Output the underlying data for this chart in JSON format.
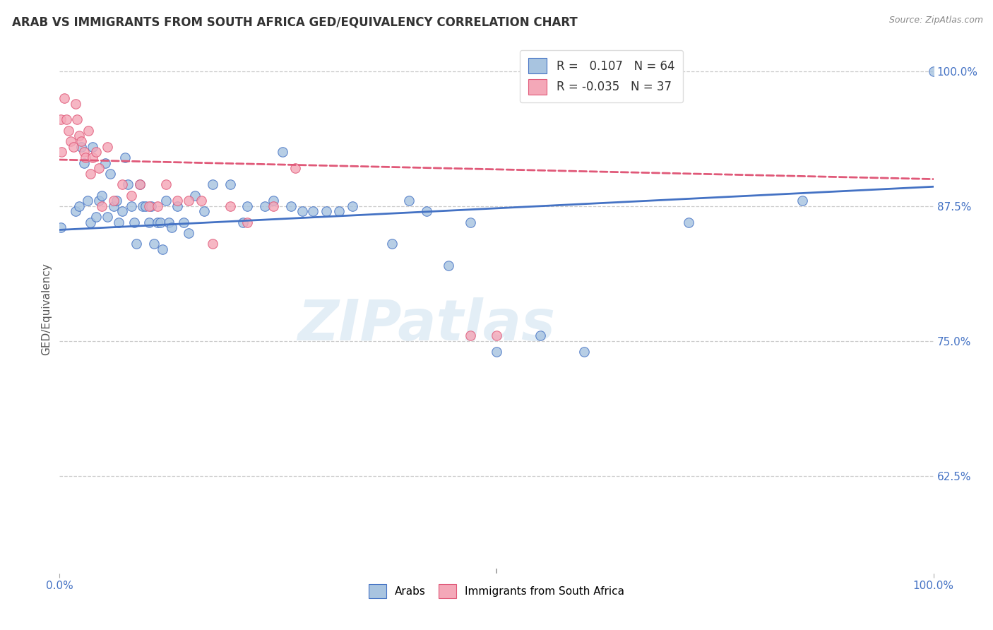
{
  "title": "ARAB VS IMMIGRANTS FROM SOUTH AFRICA GED/EQUIVALENCY CORRELATION CHART",
  "source": "Source: ZipAtlas.com",
  "ylabel": "GED/Equivalency",
  "xlim": [
    0.0,
    1.0
  ],
  "ylim": [
    0.535,
    1.025
  ],
  "legend_blue_r": "0.107",
  "legend_blue_n": "64",
  "legend_pink_r": "-0.035",
  "legend_pink_n": "37",
  "legend_label_blue": "Arabs",
  "legend_label_pink": "Immigrants from South Africa",
  "blue_color": "#a8c4e0",
  "pink_color": "#f4a8b8",
  "line_blue": "#4472c4",
  "line_pink": "#e05878",
  "title_color": "#333333",
  "axis_color": "#4472c4",
  "source_color": "#888888",
  "blue_x": [
    0.001,
    0.018,
    0.022,
    0.025,
    0.028,
    0.032,
    0.035,
    0.038,
    0.042,
    0.045,
    0.048,
    0.052,
    0.055,
    0.058,
    0.062,
    0.065,
    0.068,
    0.072,
    0.075,
    0.078,
    0.082,
    0.085,
    0.088,
    0.092,
    0.095,
    0.098,
    0.102,
    0.105,
    0.108,
    0.112,
    0.115,
    0.118,
    0.122,
    0.125,
    0.128,
    0.135,
    0.142,
    0.148,
    0.155,
    0.165,
    0.175,
    0.195,
    0.21,
    0.215,
    0.235,
    0.245,
    0.255,
    0.265,
    0.278,
    0.29,
    0.305,
    0.32,
    0.335,
    0.38,
    0.4,
    0.42,
    0.445,
    0.47,
    0.5,
    0.55,
    0.6,
    0.72,
    0.85,
    1.0
  ],
  "blue_y": [
    0.855,
    0.87,
    0.875,
    0.93,
    0.915,
    0.88,
    0.86,
    0.93,
    0.865,
    0.88,
    0.885,
    0.915,
    0.865,
    0.905,
    0.875,
    0.88,
    0.86,
    0.87,
    0.92,
    0.895,
    0.875,
    0.86,
    0.84,
    0.895,
    0.875,
    0.875,
    0.86,
    0.875,
    0.84,
    0.86,
    0.86,
    0.835,
    0.88,
    0.86,
    0.855,
    0.875,
    0.86,
    0.85,
    0.885,
    0.87,
    0.895,
    0.895,
    0.86,
    0.875,
    0.875,
    0.88,
    0.925,
    0.875,
    0.87,
    0.87,
    0.87,
    0.87,
    0.875,
    0.84,
    0.88,
    0.87,
    0.82,
    0.86,
    0.74,
    0.755,
    0.74,
    0.86,
    0.88,
    1.0
  ],
  "pink_x": [
    0.001,
    0.002,
    0.005,
    0.008,
    0.01,
    0.013,
    0.016,
    0.018,
    0.02,
    0.022,
    0.025,
    0.028,
    0.03,
    0.033,
    0.035,
    0.038,
    0.042,
    0.045,
    0.048,
    0.055,
    0.062,
    0.072,
    0.082,
    0.092,
    0.102,
    0.112,
    0.122,
    0.135,
    0.148,
    0.162,
    0.175,
    0.195,
    0.215,
    0.245,
    0.27,
    0.47,
    0.5
  ],
  "pink_y": [
    0.955,
    0.925,
    0.975,
    0.955,
    0.945,
    0.935,
    0.93,
    0.97,
    0.955,
    0.94,
    0.935,
    0.925,
    0.92,
    0.945,
    0.905,
    0.92,
    0.925,
    0.91,
    0.875,
    0.93,
    0.88,
    0.895,
    0.885,
    0.895,
    0.875,
    0.875,
    0.895,
    0.88,
    0.88,
    0.88,
    0.84,
    0.875,
    0.86,
    0.875,
    0.91,
    0.755,
    0.755
  ],
  "blue_line_x0": 0.0,
  "blue_line_x1": 1.0,
  "blue_line_y0": 0.853,
  "blue_line_y1": 0.893,
  "pink_line_x0": 0.0,
  "pink_line_x1": 1.0,
  "pink_line_y0": 0.918,
  "pink_line_y1": 0.9,
  "watermark_text": "ZIPatlas",
  "marker_size": 95,
  "yticks": [
    1.0,
    0.875,
    0.75,
    0.625
  ],
  "ytick_labels": [
    "100.0%",
    "87.5%",
    "75.0%",
    "62.5%"
  ]
}
